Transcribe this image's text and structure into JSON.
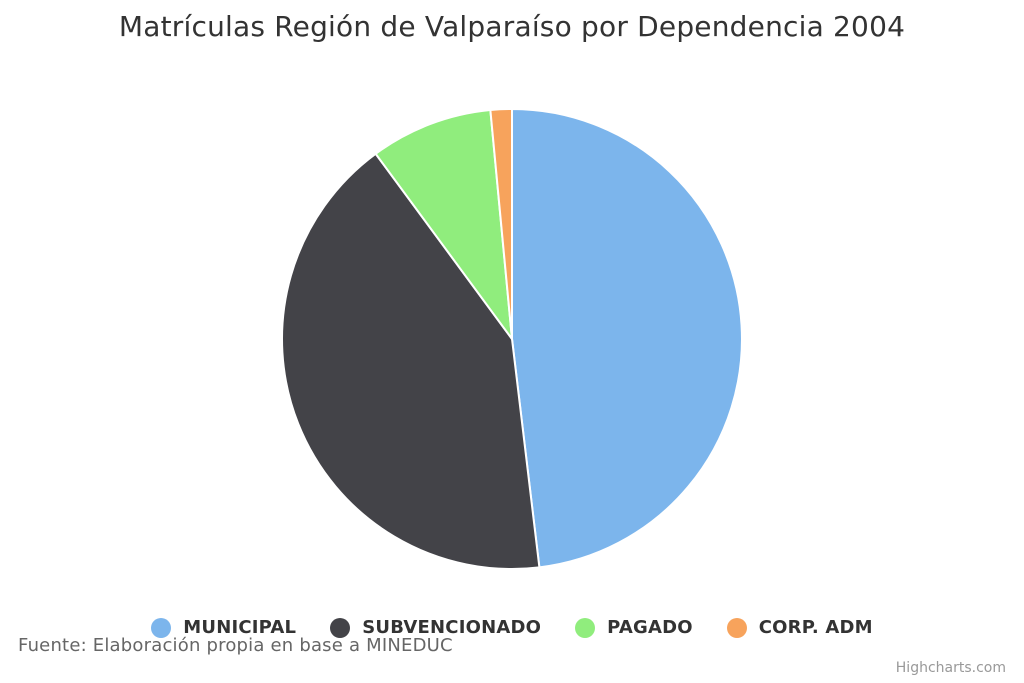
{
  "chart_data": {
    "type": "pie",
    "title": "Matrículas Región de Valparaíso por Dependencia 2004",
    "categories": [
      "MUNICIPAL",
      "SUBVENCIONADO",
      "PAGADO",
      "CORP. ADM"
    ],
    "values": [
      48.1,
      41.8,
      8.6,
      1.5
    ],
    "colors": [
      "#7cb5ec",
      "#434348",
      "#90ed7d",
      "#f7a35c"
    ],
    "legend_position": "bottom",
    "caption": "Fuente: Elaboración propia en base a MINEDUC",
    "credit": "Highcharts.com"
  }
}
